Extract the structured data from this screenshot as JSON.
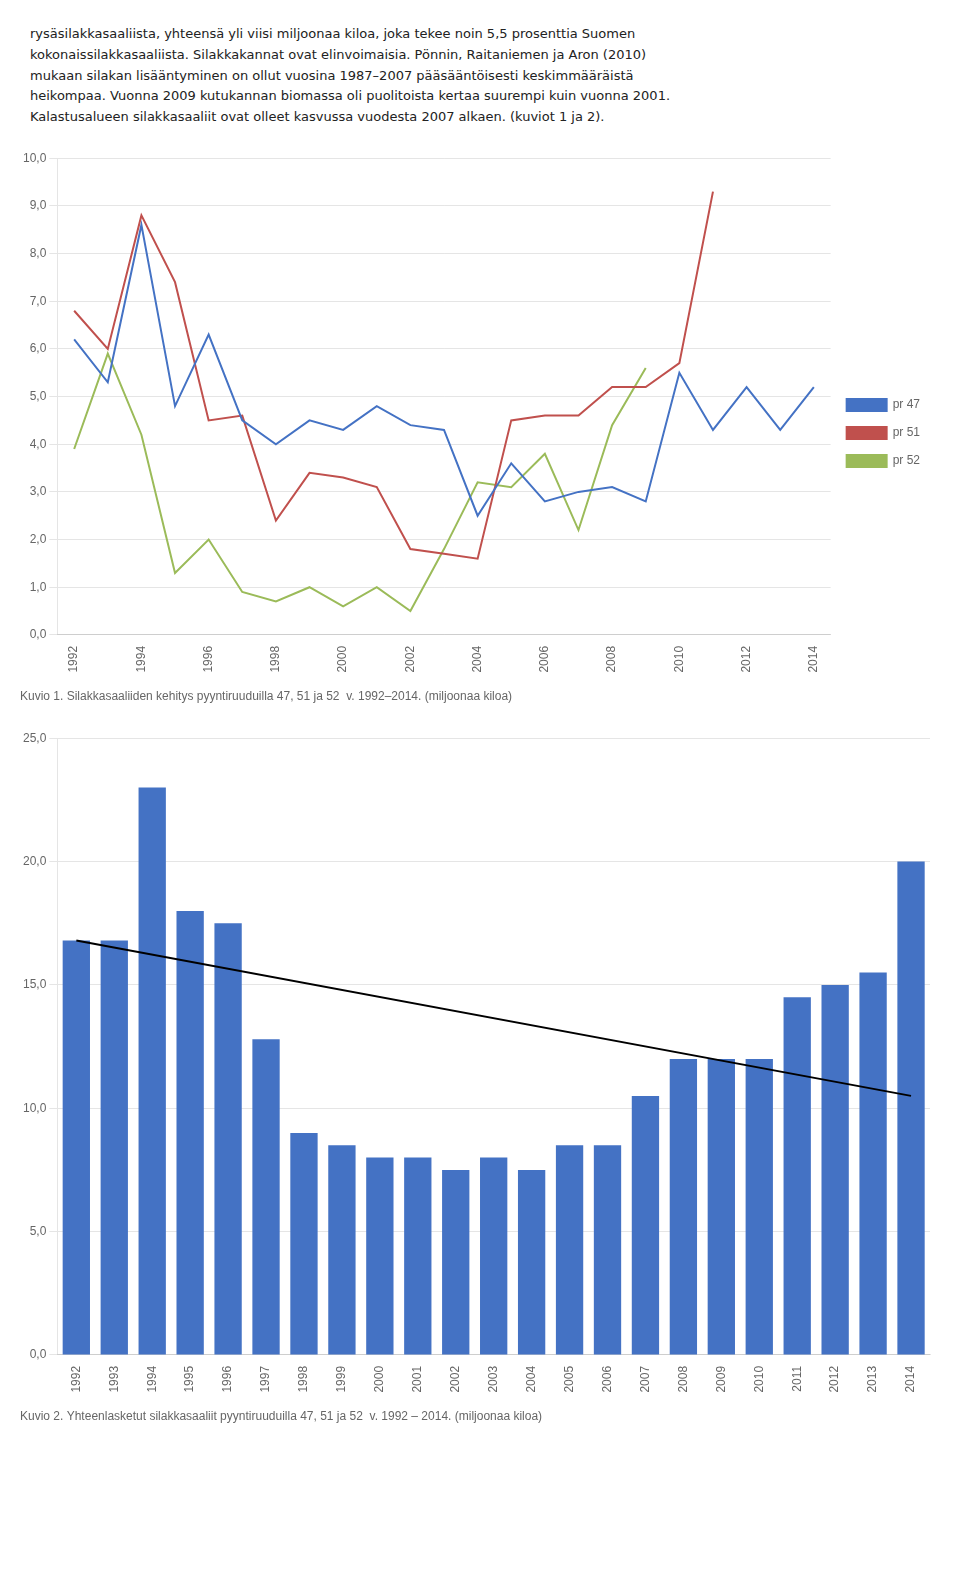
{
  "text": [
    "rysäsilakkasaaliista, yhteensä yli viisi miljoonaa kiloa, joka tekee noin 5,5 prosenttia Suomen",
    "kokonaissilakkasaaliista. Silakkakannat ovat elinvoimaisia. Pönnin, Raitaniemen ja Aron (2010)",
    "mukaan silakan lisääntyminen on ollut vuosina 1987–2007 pääsääntöisesti keskimmääräistä",
    "heikompaa. Vuonna 2009 kutukannan biomassa oli puolitoista kertaa suurempi kuin vuonna 2001.",
    "Kalastusalueen silakkasaaliit ovat olleet kasvussa vuodesta 2007 alkaen. (kuviot 1 ja 2)."
  ],
  "chart_data": [
    {
      "type": "line",
      "title": "Kuvio 1. Silakkasaaliiden kehitys pyyntiruuduilla 47, 51 ja 52  v. 1992–2014. (miljoonaa kiloa)",
      "x": [
        1992,
        1993,
        1994,
        1995,
        1996,
        1997,
        1998,
        1999,
        2000,
        2001,
        2002,
        2003,
        2004,
        2005,
        2006,
        2007,
        2008,
        2009,
        2010,
        2011,
        2012,
        2013,
        2014
      ],
      "series": [
        {
          "name": "pr 47",
          "color": "#4472C4",
          "values": [
            6.2,
            5.3,
            8.6,
            4.8,
            6.3,
            4.5,
            4.0,
            4.5,
            4.3,
            4.8,
            4.4,
            4.3,
            2.5,
            3.6,
            2.8,
            3.0,
            3.1,
            2.8,
            5.5,
            4.3,
            5.2,
            4.3,
            5.2
          ]
        },
        {
          "name": "pr 51",
          "color": "#C0504D",
          "values": [
            6.8,
            6.0,
            8.8,
            7.4,
            4.5,
            4.6,
            2.4,
            3.4,
            3.3,
            3.1,
            1.8,
            1.7,
            1.6,
            4.5,
            4.6,
            4.6,
            5.2,
            5.2,
            5.7,
            9.3,
            null,
            null,
            null
          ]
        },
        {
          "name": "pr 52",
          "color": "#9BBB59",
          "values": [
            3.9,
            5.9,
            4.2,
            1.3,
            2.0,
            0.9,
            0.7,
            1.0,
            0.6,
            1.0,
            0.5,
            1.8,
            3.2,
            3.1,
            3.8,
            2.2,
            4.4,
            5.6,
            null,
            null,
            null,
            null,
            null
          ]
        }
      ],
      "xlim": [
        1991.5,
        2014.5
      ],
      "xticks": [
        1992,
        1994,
        1996,
        1998,
        2000,
        2002,
        2004,
        2006,
        2008,
        2010,
        2012,
        2014
      ],
      "ylim": [
        0,
        10
      ],
      "yticks": [
        {
          "value": 0,
          "label": "0,0"
        },
        {
          "value": 1,
          "label": "1,0"
        },
        {
          "value": 2,
          "label": "2,0"
        },
        {
          "value": 3,
          "label": "3,0"
        },
        {
          "value": 4,
          "label": "4,0"
        },
        {
          "value": 5,
          "label": "5,0"
        },
        {
          "value": 6,
          "label": "6,0"
        },
        {
          "value": 7,
          "label": "7,0"
        },
        {
          "value": 8,
          "label": "8,0"
        },
        {
          "value": 9,
          "label": "9,0"
        },
        {
          "value": 10,
          "label": "10,0"
        }
      ],
      "grid": "y",
      "legend": "right"
    },
    {
      "type": "bar",
      "title": "Kuvio 2. Yhteenlasketut silakkasaaliit pyyntiruuduilla 47, 51 ja 52  v. 1992 – 2014. (miljoonaa kiloa)",
      "x": [
        1992,
        1993,
        1994,
        1995,
        1996,
        1997,
        1998,
        1999,
        2000,
        2001,
        2002,
        2003,
        2004,
        2005,
        2006,
        2007,
        2008,
        2009,
        2010,
        2011,
        2012,
        2013,
        2014
      ],
      "series": [
        {
          "type": "bar",
          "color": "#4472C4",
          "values": [
            16.8,
            16.8,
            23.0,
            18.0,
            17.5,
            12.8,
            9.0,
            8.5,
            8.0,
            8.0,
            7.5,
            8.0,
            7.5,
            8.5,
            8.5,
            10.5,
            12.0,
            12.0,
            12.0,
            14.5,
            15.0,
            15.5,
            20.0
          ]
        },
        {
          "type": "line",
          "color": "#000000",
          "x": [
            1992,
            2014
          ],
          "values": [
            16.8,
            10.5
          ]
        }
      ],
      "xlim": [
        1991.5,
        2014.5
      ],
      "xticks": [
        1992,
        1993,
        1994,
        1995,
        1996,
        1997,
        1998,
        1999,
        2000,
        2001,
        2002,
        2003,
        2004,
        2005,
        2006,
        2007,
        2008,
        2009,
        2010,
        2011,
        2012,
        2013,
        2014
      ],
      "ylim": [
        0,
        25
      ],
      "yticks": [
        {
          "value": 0,
          "label": "0,0"
        },
        {
          "value": 5,
          "label": "5,0"
        },
        {
          "value": 10,
          "label": "10,0"
        },
        {
          "value": 15,
          "label": "15,0"
        },
        {
          "value": 20,
          "label": "20,0"
        },
        {
          "value": 25,
          "label": "25,0"
        }
      ],
      "grid": "y"
    }
  ]
}
